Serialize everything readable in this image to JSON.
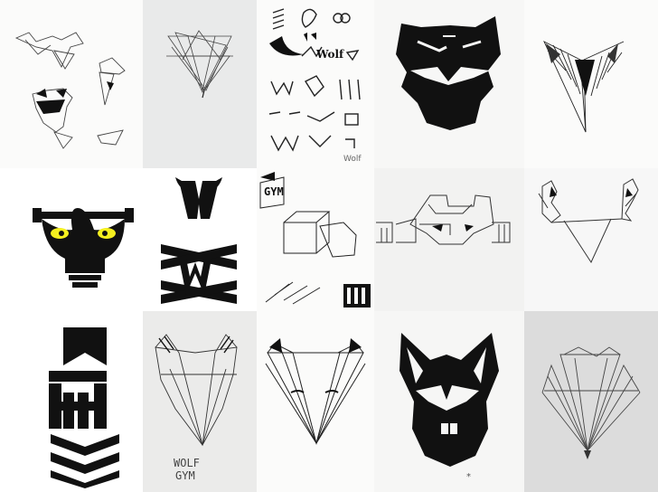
{
  "colors": {
    "paper_white": "#fbfbfa",
    "paper_gray": "#e9eaea",
    "paper_gray_dark": "#dcdcdc",
    "ink": "#111111",
    "pencil": "#555555",
    "eye_yellow": "#f4ef1f"
  },
  "sketch_text": {
    "wolf_logo_small": "Wolf",
    "wolf_gym_line1": "WOLF",
    "wolf_gym_line2": "GYM",
    "sketch_gym": "GYM",
    "sketch_wolf_small": "Wolf"
  },
  "tiles": [
    {
      "id": "r1c1",
      "subject": "pencil wolf sketches"
    },
    {
      "id": "r1c2",
      "subject": "fan-shaped wolf head pencil"
    },
    {
      "id": "r1c3",
      "subject": "logo thumbnail sketches"
    },
    {
      "id": "r1c4",
      "subject": "marker wolf mask"
    },
    {
      "id": "r1c5",
      "subject": "hatched wolf head"
    },
    {
      "id": "r2c1",
      "subject": "bodybuilder wolf logo"
    },
    {
      "id": "r2c2",
      "subject": "W monogram logo"
    },
    {
      "id": "r2c3",
      "subject": "3D box lettering sketches"
    },
    {
      "id": "r2c4",
      "subject": "wolf face lettering sketch"
    },
    {
      "id": "r2c5",
      "subject": "bull-horn wolf sketch"
    },
    {
      "id": "r3c1",
      "subject": "chevron tower logo"
    },
    {
      "id": "r3c2",
      "subject": "Wolf Gym pencil head"
    },
    {
      "id": "r3c3",
      "subject": "wolf head with eyelashes"
    },
    {
      "id": "r3c4",
      "subject": "marker wolf face"
    },
    {
      "id": "r3c5",
      "subject": "fan construction sketch"
    }
  ]
}
